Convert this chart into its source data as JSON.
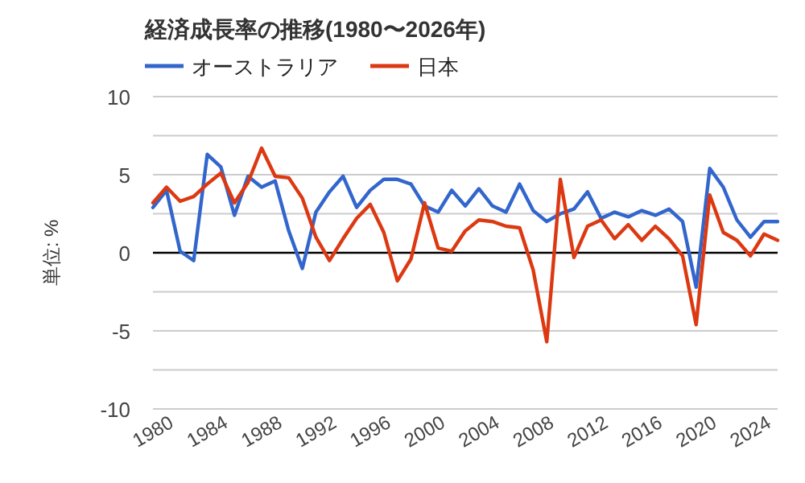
{
  "chart_data": {
    "type": "line",
    "title": "経済成長率の推移(1980〜2026年)",
    "ylabel": "単位: %",
    "x": [
      1980,
      1981,
      1982,
      1983,
      1984,
      1985,
      1986,
      1987,
      1988,
      1989,
      1990,
      1991,
      1992,
      1993,
      1994,
      1995,
      1996,
      1997,
      1998,
      1999,
      2000,
      2001,
      2002,
      2003,
      2004,
      2005,
      2006,
      2007,
      2008,
      2009,
      2010,
      2011,
      2012,
      2013,
      2014,
      2015,
      2016,
      2017,
      2018,
      2019,
      2020,
      2021,
      2022,
      2023,
      2024,
      2025,
      2026
    ],
    "series": [
      {
        "name": "オーストラリア",
        "color": "#3366cc",
        "values": [
          2.9,
          4.0,
          0.1,
          -0.5,
          6.3,
          5.5,
          2.4,
          4.9,
          4.2,
          4.6,
          1.4,
          -1.0,
          2.6,
          3.9,
          4.9,
          2.9,
          4.0,
          4.7,
          4.7,
          4.4,
          3.0,
          2.6,
          4.0,
          3.0,
          4.1,
          3.0,
          2.6,
          4.4,
          2.7,
          2.0,
          2.5,
          2.8,
          3.9,
          2.2,
          2.6,
          2.3,
          2.7,
          2.4,
          2.8,
          2.0,
          -2.2,
          5.4,
          4.2,
          2.1,
          1.0,
          2.0,
          2.0
        ]
      },
      {
        "name": "日本",
        "color": "#dc3912",
        "values": [
          3.2,
          4.2,
          3.3,
          3.6,
          4.4,
          5.1,
          3.2,
          4.5,
          6.7,
          4.9,
          4.8,
          3.5,
          1.0,
          -0.5,
          0.9,
          2.2,
          3.1,
          1.3,
          -1.8,
          -0.4,
          3.2,
          0.3,
          0.1,
          1.4,
          2.1,
          2.0,
          1.7,
          1.6,
          -1.1,
          -5.7,
          4.7,
          -0.3,
          1.7,
          2.1,
          0.9,
          1.8,
          0.8,
          1.7,
          0.9,
          -0.2,
          -4.6,
          3.7,
          1.3,
          0.8,
          -0.2,
          1.2,
          0.8
        ]
      }
    ],
    "xlim": [
      1980,
      2026
    ],
    "xticks": [
      1980,
      1984,
      1988,
      1992,
      1996,
      2000,
      2004,
      2008,
      2012,
      2016,
      2020,
      2024
    ],
    "ylim": [
      -10,
      10
    ],
    "yticks": [
      -10,
      {
        "value": -7.5,
        "label": null
      },
      -5,
      {
        "value": -2.5,
        "label": null
      },
      0,
      {
        "value": 2.5,
        "label": null
      },
      5,
      {
        "value": 7.5,
        "label": null
      },
      10
    ],
    "ref_lines": [
      {
        "axis": "y",
        "value": 0,
        "color": "#000000"
      }
    ],
    "grid": "y",
    "legend": "top left",
    "marker": "none",
    "line_style": "solid"
  }
}
